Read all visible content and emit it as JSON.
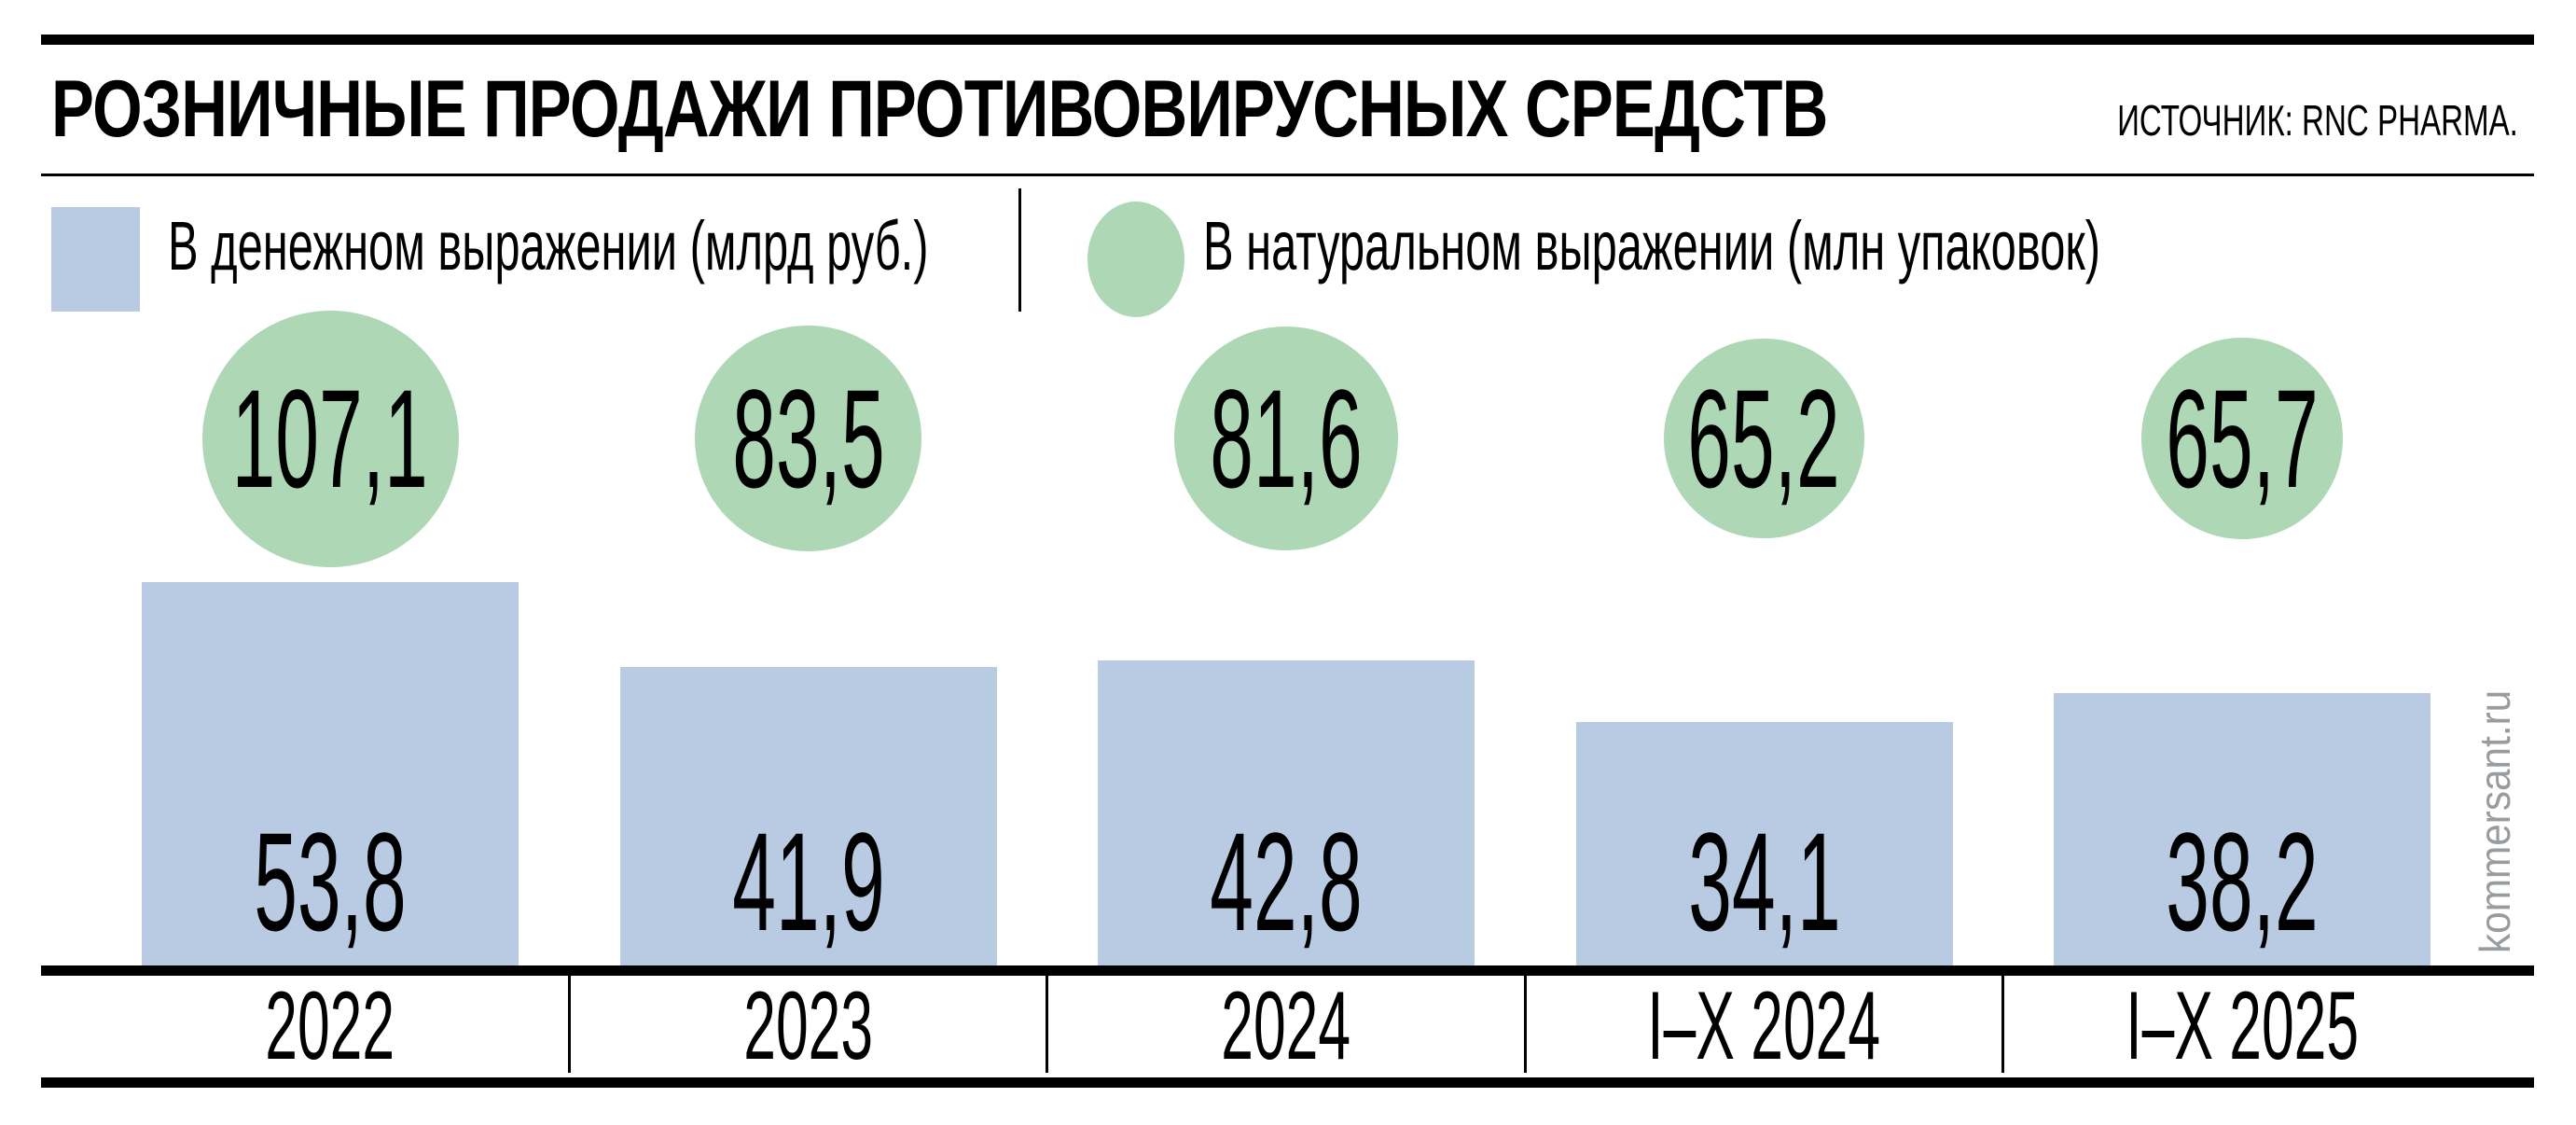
{
  "header": {
    "title": "РОЗНИЧНЫЕ ПРОДАЖИ ПРОТИВОВИРУСНЫХ СРЕДСТВ",
    "source": "ИСТОЧНИК: RNC PHARMA."
  },
  "legend": [
    {
      "label": "В денежном выражении (млрд руб.)",
      "swatch": "square",
      "color": "#b9cbe2"
    },
    {
      "label": "В натуральном выражении (млн упаковок)",
      "swatch": "circle",
      "color": "#aed8b5"
    }
  ],
  "watermark": "kommersant.ru",
  "colors": {
    "bar_blue": "#b9cbe2",
    "bubble_green": "#aed8b5",
    "text_black": "#000000",
    "watermark_gray": "#989c9e",
    "background": "#ffffff"
  },
  "chart_data": {
    "type": "bar",
    "title": "РОЗНИЧНЫЕ ПРОДАЖИ ПРОТИВОВИРУСНЫХ СРЕДСТВ",
    "source": "ИСТОЧНИК: RNC PHARMA.",
    "categories": [
      "2022",
      "2023",
      "2024",
      "I–X 2024",
      "I–X 2025"
    ],
    "series": [
      {
        "name": "В денежном выражении (млрд руб.)",
        "type": "bar",
        "color": "#b9cbe2",
        "values": [
          53.8,
          41.9,
          42.8,
          34.1,
          38.2
        ],
        "labels": [
          "53,8",
          "41,9",
          "42,8",
          "34,1",
          "38,2"
        ]
      },
      {
        "name": "В натуральном выражении (млн упаковок)",
        "type": "bubble",
        "color": "#aed8b5",
        "values": [
          107.1,
          83.5,
          81.6,
          65.2,
          65.7
        ],
        "labels": [
          "107,1",
          "83,5",
          "81,6",
          "65,2",
          "65,7"
        ]
      }
    ],
    "xlabel": "",
    "ylabel": "",
    "value_axis_hidden": true,
    "grid": false,
    "legend_position": "top",
    "bubble_area_proportional_to_value": true,
    "bar_baseline_y": 1035
  }
}
